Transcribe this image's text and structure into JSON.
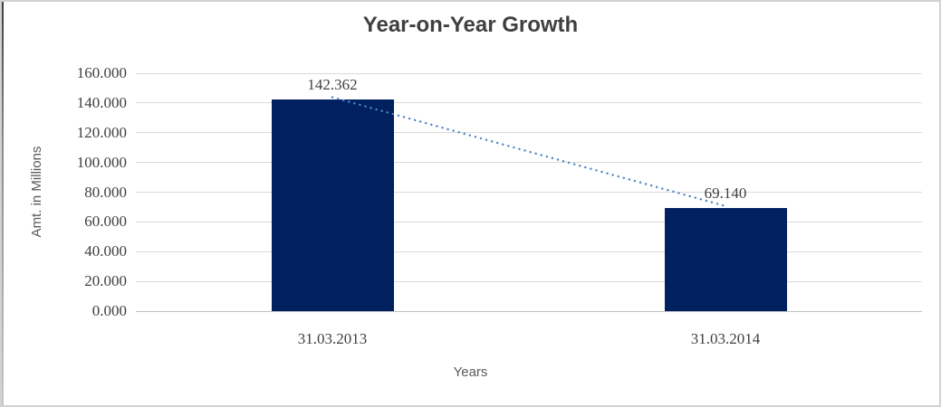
{
  "chart_data": {
    "type": "bar",
    "title": "Year-on-Year Growth",
    "xlabel": "Years",
    "ylabel": "Amt. in Millions",
    "categories": [
      "31.03.2013",
      "31.03.2014"
    ],
    "values": [
      142.362,
      69.14
    ],
    "data_labels": [
      "142.362",
      "69.140"
    ],
    "y_ticks": [
      "160.000",
      "140.000",
      "120.000",
      "100.000",
      "80.000",
      "60.000",
      "40.000",
      "20.000",
      "0.000"
    ],
    "ylim": [
      0,
      160
    ],
    "grid": true,
    "legend": "none",
    "trendline": {
      "style": "dotted",
      "from_category": "31.03.2013",
      "to_category": "31.03.2014"
    },
    "colors": {
      "bar": "#002060",
      "trendline": "#4E87C5",
      "gridline": "#D9D9D9",
      "axisline": "#C0C0C0",
      "ticktext": "#3F3F3F",
      "axistitle": "#595959",
      "titletext": "#404040",
      "border": "#D2D2D2"
    }
  }
}
